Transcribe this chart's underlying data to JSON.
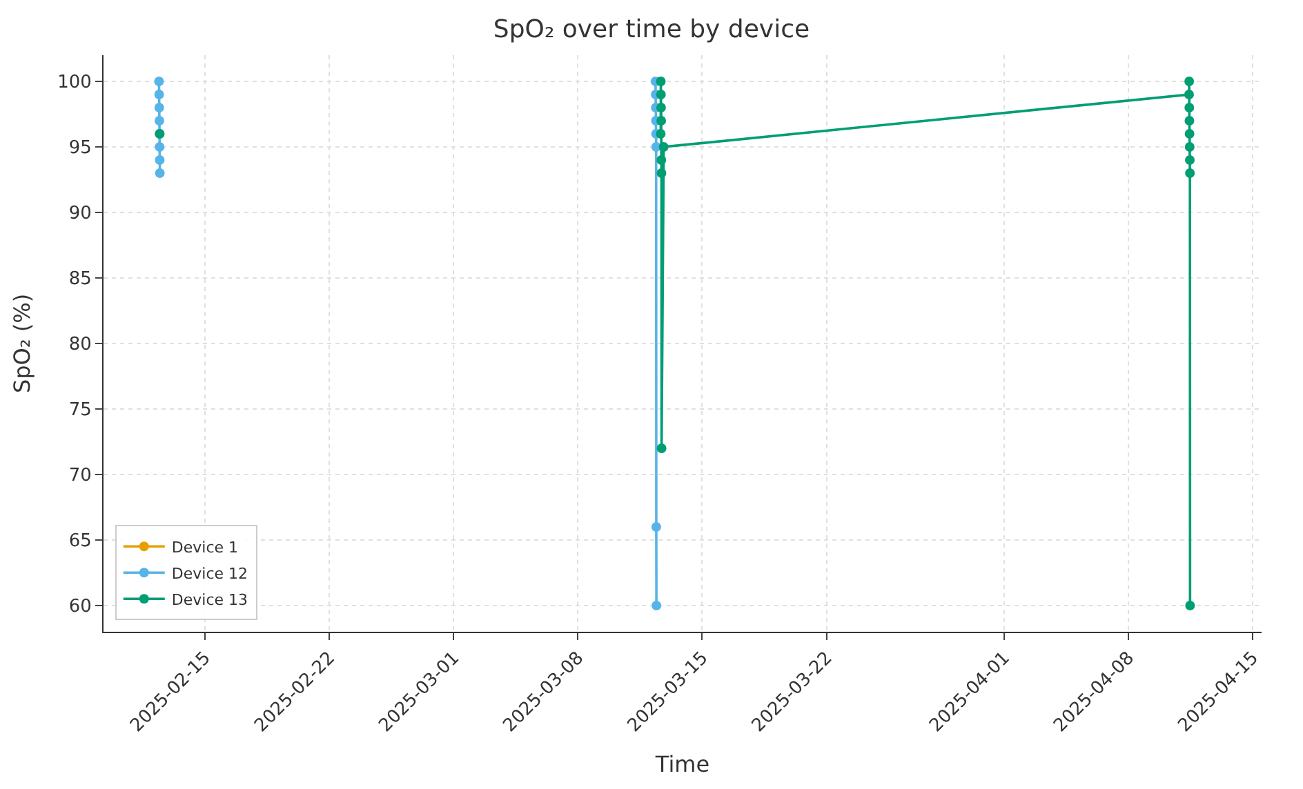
{
  "chart_data": {
    "type": "line",
    "title": "SpO₂ over time by device",
    "xlabel": "Time",
    "ylabel": "SpO₂ (%)",
    "xlim": [
      "2025-02-09T07:00",
      "2025-04-15T12:00"
    ],
    "ylim": [
      58,
      102
    ],
    "xticks": [
      "2025-02-15",
      "2025-02-22",
      "2025-03-01",
      "2025-03-08",
      "2025-03-15",
      "2025-03-22",
      "2025-04-01",
      "2025-04-08",
      "2025-04-15"
    ],
    "yticks": [
      60,
      65,
      70,
      75,
      80,
      85,
      90,
      95,
      100
    ],
    "grid": true,
    "legend": "bottom left",
    "marker": "circle",
    "line_style": "solid",
    "series": [
      {
        "name": "Device 1",
        "color": "#e69f00"
      },
      {
        "name": "Device 12",
        "color": "#56b4e9",
        "x": [
          "2025-02-12T10:00",
          "2025-02-12T10:10",
          "2025-02-12T10:20",
          "2025-02-12T10:30",
          "2025-02-12T10:40",
          "2025-02-12T10:50",
          "2025-02-12T11:00",
          "2025-02-12T11:10",
          "2025-02-20T00:00",
          "2025-03-12T09:00",
          "2025-03-12T09:10",
          "2025-03-12T09:20",
          "2025-03-12T09:30",
          "2025-03-12T09:40",
          "2025-03-12T09:50",
          "2025-03-12T10:00",
          "2025-03-12T10:10"
        ],
        "values": [
          100,
          99,
          98,
          97,
          96,
          95,
          94,
          93,
          null,
          100,
          99,
          98,
          97,
          96,
          95,
          66,
          60
        ]
      },
      {
        "name": "Device 13",
        "color": "#009e73",
        "x": [
          "2025-02-12T11:00",
          "2025-02-20T00:00",
          "2025-03-12T16:00",
          "2025-03-12T16:10",
          "2025-03-12T16:20",
          "2025-03-12T16:30",
          "2025-03-12T16:40",
          "2025-03-12T16:50",
          "2025-03-12T17:00",
          "2025-03-12T17:10",
          "2025-03-12T20:00",
          "2025-04-11T10:00",
          "2025-04-11T10:10",
          "2025-04-11T10:20",
          "2025-04-11T10:30",
          "2025-04-11T10:40",
          "2025-04-11T10:50",
          "2025-04-11T11:00",
          "2025-04-11T11:10",
          "2025-04-11T11:20"
        ],
        "values": [
          96,
          null,
          96,
          100,
          99,
          98,
          97,
          94,
          93,
          72,
          95,
          99,
          100,
          98,
          97,
          96,
          95,
          94,
          93,
          60
        ]
      }
    ]
  }
}
